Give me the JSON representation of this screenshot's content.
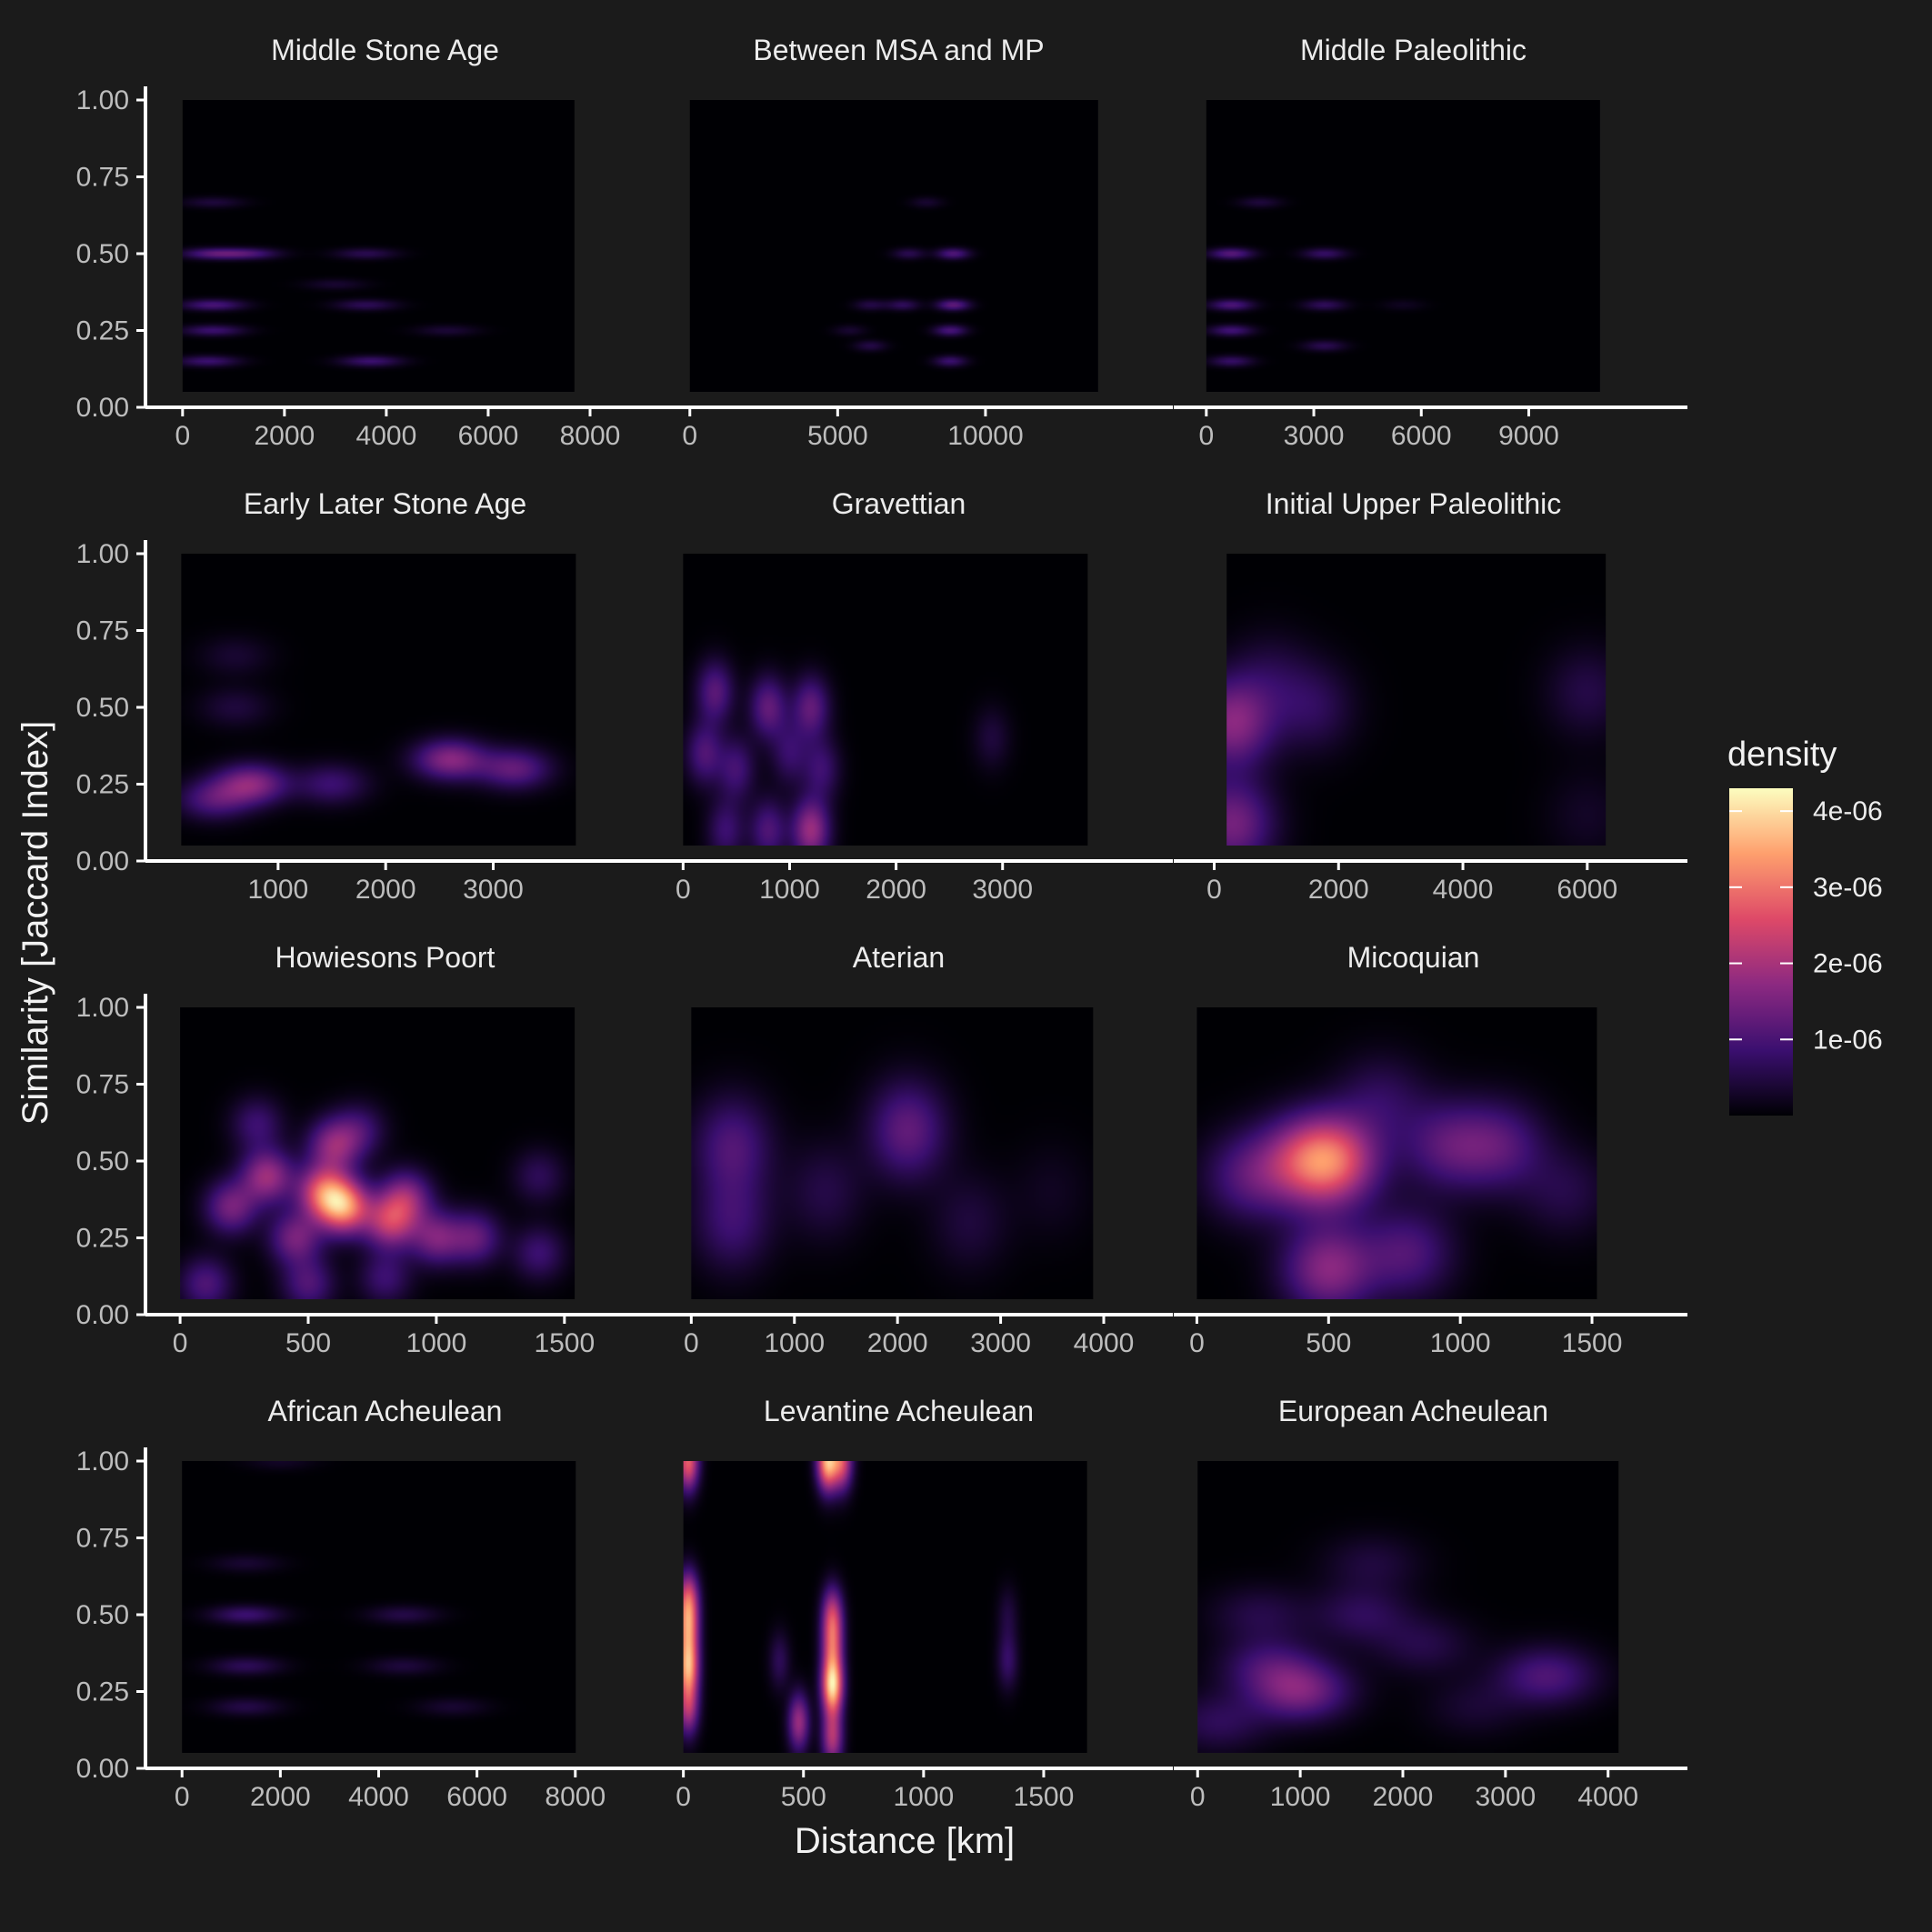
{
  "chart_data": {
    "type": "heatmap",
    "xlabel": "Distance [km]",
    "ylabel": "Similarity [Jaccard Index]",
    "y_ticks": [
      "0.00",
      "0.25",
      "0.50",
      "0.75",
      "1.00"
    ],
    "ylim": [
      0,
      1
    ],
    "legend": {
      "title": "density",
      "placement": "right",
      "ticks": [
        "1e-06",
        "2e-06",
        "3e-06",
        "4e-06"
      ],
      "tick_values": [
        1e-06,
        2e-06,
        3e-06,
        4e-06
      ],
      "max": 4.3e-06,
      "palette": [
        "#000004",
        "#3b0f70",
        "#8c2981",
        "#de4968",
        "#fe9f6d",
        "#fcfdbf"
      ]
    },
    "panels": [
      {
        "title": "Middle Stone Age",
        "xlim": [
          -300,
          8000
        ],
        "x_ticks": [
          0,
          2000,
          4000,
          6000,
          8000
        ],
        "data_x": [
          0,
          7700
        ],
        "data_y": [
          0.05,
          1.0
        ],
        "sx": 420,
        "sy": 0.012,
        "blobs": [
          [
            600,
            0.5,
            0.26
          ],
          [
            600,
            0.333,
            0.24
          ],
          [
            600,
            0.25,
            0.2
          ],
          [
            500,
            0.15,
            0.2
          ],
          [
            1300,
            0.5,
            0.22
          ],
          [
            3700,
            0.15,
            0.2
          ],
          [
            3600,
            0.333,
            0.15
          ],
          [
            3600,
            0.5,
            0.14
          ],
          [
            5200,
            0.25,
            0.09
          ],
          [
            600,
            0.667,
            0.1
          ],
          [
            3000,
            0.4,
            0.08
          ]
        ]
      },
      {
        "title": "Between MSA and MP",
        "xlim": [
          -300,
          14000
        ],
        "x_ticks": [
          0,
          5000,
          10000
        ],
        "data_x": [
          0,
          13800
        ],
        "data_y": [
          0.05,
          1.0
        ],
        "sx": 380,
        "sy": 0.012,
        "blobs": [
          [
            8900,
            0.333,
            0.3
          ],
          [
            8900,
            0.5,
            0.26
          ],
          [
            8800,
            0.25,
            0.24
          ],
          [
            8800,
            0.15,
            0.2
          ],
          [
            7200,
            0.333,
            0.16
          ],
          [
            7400,
            0.5,
            0.14
          ],
          [
            6100,
            0.333,
            0.12
          ],
          [
            6100,
            0.2,
            0.12
          ],
          [
            5400,
            0.25,
            0.08
          ],
          [
            8000,
            0.667,
            0.08
          ]
        ]
      },
      {
        "title": "Middle Paleolithic",
        "xlim": [
          -300,
          11500
        ],
        "x_ticks": [
          0,
          3000,
          6000,
          9000
        ],
        "data_x": [
          0,
          11000
        ],
        "data_y": [
          0.05,
          1.0
        ],
        "sx": 420,
        "sy": 0.012,
        "blobs": [
          [
            700,
            0.5,
            0.28
          ],
          [
            700,
            0.333,
            0.25
          ],
          [
            700,
            0.25,
            0.22
          ],
          [
            700,
            0.15,
            0.18
          ],
          [
            3300,
            0.5,
            0.18
          ],
          [
            3300,
            0.333,
            0.16
          ],
          [
            3300,
            0.2,
            0.14
          ],
          [
            1500,
            0.667,
            0.1
          ],
          [
            5500,
            0.333,
            0.05
          ]
        ]
      },
      {
        "title": "Early Later Stone Age",
        "xlim": [
          -30,
          3900
        ],
        "x_ticks": [
          1000,
          2000,
          3000
        ],
        "data_x": [
          100,
          3770
        ],
        "data_y": [
          0.05,
          1.0
        ],
        "sx": 230,
        "sy": 0.045,
        "blobs": [
          [
            750,
            0.25,
            0.4
          ],
          [
            400,
            0.2,
            0.25
          ],
          [
            2600,
            0.33,
            0.4
          ],
          [
            3200,
            0.3,
            0.3
          ],
          [
            1500,
            0.25,
            0.2
          ],
          [
            600,
            0.5,
            0.1
          ],
          [
            600,
            0.667,
            0.08
          ]
        ]
      },
      {
        "title": "Gravettian",
        "xlim": [
          -20,
          3950
        ],
        "x_ticks": [
          0,
          1000,
          2000,
          3000
        ],
        "data_x": [
          0,
          3800
        ],
        "data_y": [
          0.05,
          1.0
        ],
        "sx": 120,
        "sy": 0.07,
        "blobs": [
          [
            1200,
            0.1,
            0.45
          ],
          [
            1200,
            0.5,
            0.3
          ],
          [
            800,
            0.5,
            0.3
          ],
          [
            300,
            0.55,
            0.28
          ],
          [
            200,
            0.35,
            0.25
          ],
          [
            500,
            0.3,
            0.22
          ],
          [
            800,
            0.1,
            0.25
          ],
          [
            400,
            0.1,
            0.2
          ],
          [
            1000,
            0.35,
            0.18
          ],
          [
            2900,
            0.4,
            0.1
          ],
          [
            1300,
            0.3,
            0.2
          ]
        ]
      },
      {
        "title": "Initial Upper Paleolithic",
        "xlim": [
          -300,
          6500
        ],
        "x_ticks": [
          0,
          2000,
          4000,
          6000
        ],
        "data_x": [
          200,
          6300
        ],
        "data_y": [
          0.05,
          1.0
        ],
        "sx": 450,
        "sy": 0.1,
        "blobs": [
          [
            300,
            0.45,
            0.4
          ],
          [
            300,
            0.12,
            0.35
          ],
          [
            1600,
            0.5,
            0.15
          ],
          [
            6000,
            0.55,
            0.12
          ],
          [
            6000,
            0.15,
            0.06
          ],
          [
            900,
            0.6,
            0.1
          ]
        ]
      },
      {
        "title": "Howiesons Poort",
        "xlim": [
          -50,
          1600
        ],
        "x_ticks": [
          0,
          500,
          1000,
          1500
        ],
        "data_x": [
          0,
          1540
        ],
        "data_y": [
          0.05,
          1.0
        ],
        "sx": 70,
        "sy": 0.06,
        "blobs": [
          [
            640,
            0.35,
            0.75
          ],
          [
            560,
            0.4,
            0.6
          ],
          [
            340,
            0.45,
            0.45
          ],
          [
            820,
            0.3,
            0.5
          ],
          [
            880,
            0.38,
            0.4
          ],
          [
            200,
            0.35,
            0.35
          ],
          [
            450,
            0.25,
            0.35
          ],
          [
            1000,
            0.25,
            0.35
          ],
          [
            1150,
            0.25,
            0.3
          ],
          [
            600,
            0.55,
            0.4
          ],
          [
            100,
            0.1,
            0.25
          ],
          [
            500,
            0.1,
            0.25
          ],
          [
            1400,
            0.2,
            0.2
          ],
          [
            1400,
            0.45,
            0.15
          ],
          [
            300,
            0.62,
            0.2
          ],
          [
            800,
            0.12,
            0.2
          ],
          [
            700,
            0.6,
            0.2
          ]
        ]
      },
      {
        "title": "Aterian",
        "xlim": [
          -100,
          4000
        ],
        "x_ticks": [
          0,
          1000,
          2000,
          3000,
          4000
        ],
        "data_x": [
          0,
          3900
        ],
        "data_y": [
          0.05,
          1.0
        ],
        "sx": 260,
        "sy": 0.11,
        "blobs": [
          [
            2100,
            0.6,
            0.3
          ],
          [
            400,
            0.55,
            0.25
          ],
          [
            400,
            0.3,
            0.2
          ],
          [
            1300,
            0.4,
            0.12
          ],
          [
            2700,
            0.3,
            0.1
          ],
          [
            3500,
            0.4,
            0.05
          ]
        ]
      },
      {
        "title": "Micoquian",
        "xlim": [
          -5,
          1600
        ],
        "x_ticks": [
          0,
          500,
          1000,
          1500
        ],
        "data_x": [
          0,
          1520
        ],
        "data_y": [
          0.05,
          1.0
        ],
        "sx": 120,
        "sy": 0.1,
        "blobs": [
          [
            520,
            0.5,
            0.6
          ],
          [
            400,
            0.5,
            0.35
          ],
          [
            500,
            0.15,
            0.4
          ],
          [
            800,
            0.2,
            0.25
          ],
          [
            950,
            0.55,
            0.25
          ],
          [
            1150,
            0.55,
            0.25
          ],
          [
            200,
            0.45,
            0.25
          ],
          [
            1400,
            0.4,
            0.12
          ],
          [
            700,
            0.7,
            0.15
          ]
        ]
      },
      {
        "title": "African Acheulean",
        "xlim": [
          -300,
          8300
        ],
        "x_ticks": [
          0,
          2000,
          4000,
          6000,
          8000
        ],
        "data_x": [
          0,
          8000
        ],
        "data_y": [
          0.05,
          1.0
        ],
        "sx": 500,
        "sy": 0.02,
        "blobs": [
          [
            1300,
            0.5,
            0.2
          ],
          [
            1300,
            0.333,
            0.15
          ],
          [
            1300,
            0.2,
            0.12
          ],
          [
            4500,
            0.5,
            0.12
          ],
          [
            4500,
            0.333,
            0.1
          ],
          [
            1300,
            0.667,
            0.08
          ],
          [
            5500,
            0.2,
            0.08
          ],
          [
            2000,
            1.0,
            0.06
          ]
        ]
      },
      {
        "title": "Levantine Acheulean",
        "xlim": [
          -10,
          1750
        ],
        "x_ticks": [
          0,
          500,
          1000,
          1500
        ],
        "data_x": [
          0,
          1680
        ],
        "data_y": [
          0.05,
          1.0
        ],
        "sx": 30,
        "sy": 0.065,
        "blobs": [
          [
            620,
            0.27,
            1.0
          ],
          [
            620,
            0.4,
            0.5
          ],
          [
            620,
            0.5,
            0.5
          ],
          [
            600,
            1.0,
            0.9
          ],
          [
            660,
            1.0,
            0.6
          ],
          [
            20,
            0.33,
            0.8
          ],
          [
            20,
            0.45,
            0.6
          ],
          [
            20,
            0.55,
            0.6
          ],
          [
            20,
            1.0,
            0.7
          ],
          [
            20,
            0.2,
            0.5
          ],
          [
            480,
            0.15,
            0.45
          ],
          [
            400,
            0.35,
            0.15
          ],
          [
            1350,
            0.35,
            0.18
          ],
          [
            1350,
            0.5,
            0.1
          ],
          [
            620,
            0.1,
            0.5
          ]
        ]
      },
      {
        "title": "European Acheulean",
        "xlim": [
          -20,
          4100
        ],
        "x_ticks": [
          0,
          1000,
          2000,
          3000,
          4000
        ],
        "data_x": [
          0,
          4100
        ],
        "data_y": [
          0.05,
          1.0
        ],
        "sx": 330,
        "sy": 0.065,
        "blobs": [
          [
            1000,
            0.25,
            0.35
          ],
          [
            3400,
            0.3,
            0.25
          ],
          [
            700,
            0.333,
            0.2
          ],
          [
            1600,
            0.5,
            0.15
          ],
          [
            600,
            0.5,
            0.12
          ],
          [
            2200,
            0.4,
            0.12
          ],
          [
            1700,
            0.667,
            0.1
          ],
          [
            200,
            0.15,
            0.15
          ],
          [
            2700,
            0.2,
            0.08
          ]
        ]
      }
    ]
  }
}
